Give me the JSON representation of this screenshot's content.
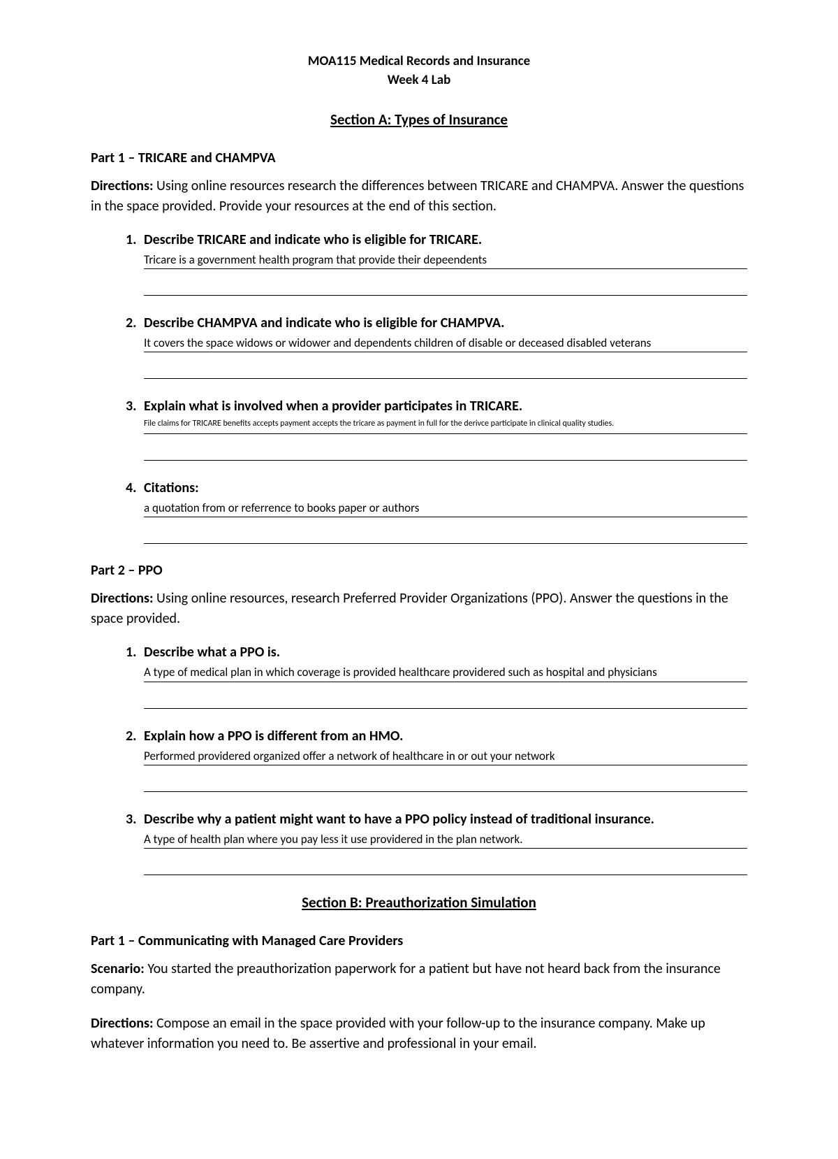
{
  "header": {
    "line1": "MOA115 Medical Records and Insurance",
    "line2": "Week 4 Lab"
  },
  "sectionA": {
    "title": "Section A: Types of Insurance",
    "part1": {
      "title": "Part 1 – TRICARE and CHAMPVA",
      "directions_label": "Directions:",
      "directions_text": " Using online resources research the differences between TRICARE and CHAMPVA. Answer the questions in the space provided.  Provide your resources at the end of this section.",
      "questions": [
        {
          "q": "Describe TRICARE and indicate who is eligible for TRICARE.",
          "a": "Tricare is a government health program that provide their depeendents",
          "small": false
        },
        {
          "q": "Describe CHAMPVA and indicate who is eligible for CHAMPVA.",
          "a": "It covers the space widows or widower and dependents children of disable or deceased disabled veterans",
          "small": false
        },
        {
          "q": "Explain what is involved when a provider participates in TRICARE.",
          "a": "File claims for TRICARE benefits accepts payment accepts the tricare as payment in full for the derivce participate in clinical quality studies.",
          "small": true
        },
        {
          "q": "Citations:",
          "a": "a quotation from or referrence to books paper or authors",
          "small": false
        }
      ]
    },
    "part2": {
      "title": "Part 2 – PPO",
      "directions_label": "Directions:",
      "directions_text": " Using online resources, research Preferred Provider Organizations (PPO).  Answer the questions in the space provided.",
      "questions": [
        {
          "q": "Describe what a PPO is.",
          "a": "A type of medical plan in which coverage is provided healthcare providered such as hospital and physicians",
          "small": false
        },
        {
          "q": "Explain how a PPO is different from an HMO.",
          "a": "Performed providered organized offer a network of healthcare in or out your network",
          "small": false
        },
        {
          "q": "Describe why a patient might want to have a PPO policy instead of traditional insurance.",
          "a": "A type of health plan where you pay less it use providered in the plan network.",
          "small": false
        }
      ]
    }
  },
  "sectionB": {
    "title": "Section B: Preauthorization Simulation",
    "part1": {
      "title": "Part 1 – Communicating with Managed Care Providers",
      "scenario_label": "Scenario:",
      "scenario_text": "  You started the preauthorization paperwork for a patient but have not heard back from the insurance company.",
      "directions_label": "Directions:",
      "directions_text": " Compose an email in the space provided with your follow-up to the insurance company. Make up whatever information you need to. Be assertive and professional in your email."
    }
  }
}
